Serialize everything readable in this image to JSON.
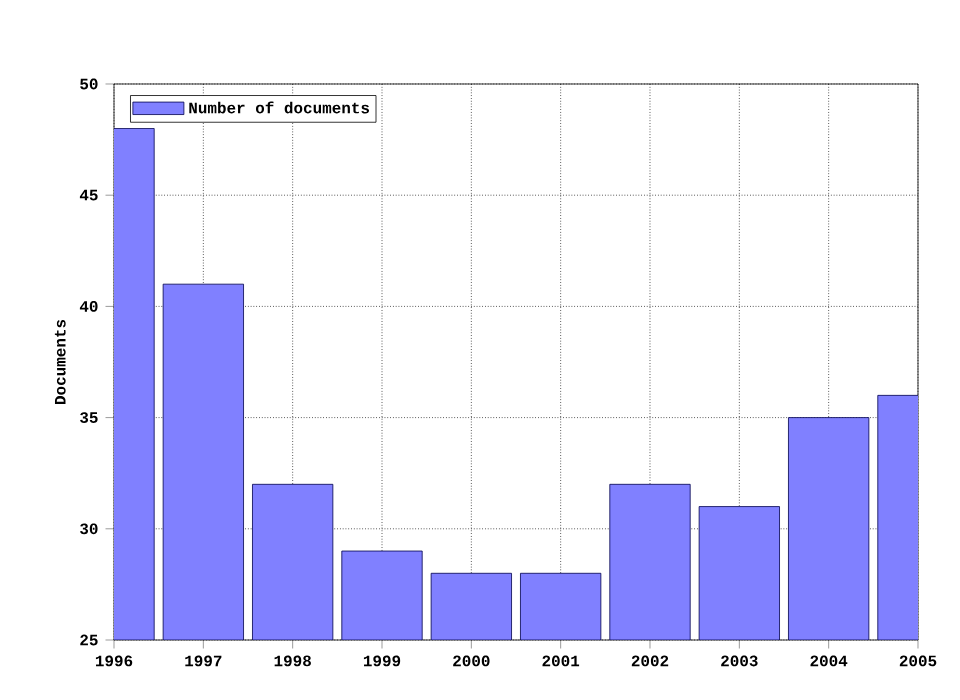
{
  "chart_data": {
    "type": "bar",
    "ylabel": "Documents",
    "x": [
      1996,
      1997,
      1998,
      1999,
      2000,
      2001,
      2002,
      2003,
      2004,
      2005
    ],
    "series": [
      {
        "name": "Number of documents",
        "color": "#8080ff",
        "values": [
          48,
          41,
          32,
          29,
          28,
          28,
          32,
          31,
          35,
          36
        ]
      }
    ],
    "xlim": [
      1996,
      2005
    ],
    "xticks": [
      1996,
      1997,
      1998,
      1999,
      2000,
      2001,
      2002,
      2003,
      2004,
      2005
    ],
    "ylim": [
      25,
      50
    ],
    "yticks": [
      25,
      30,
      35,
      40,
      45,
      50
    ],
    "grid": true,
    "legend": "top left"
  }
}
